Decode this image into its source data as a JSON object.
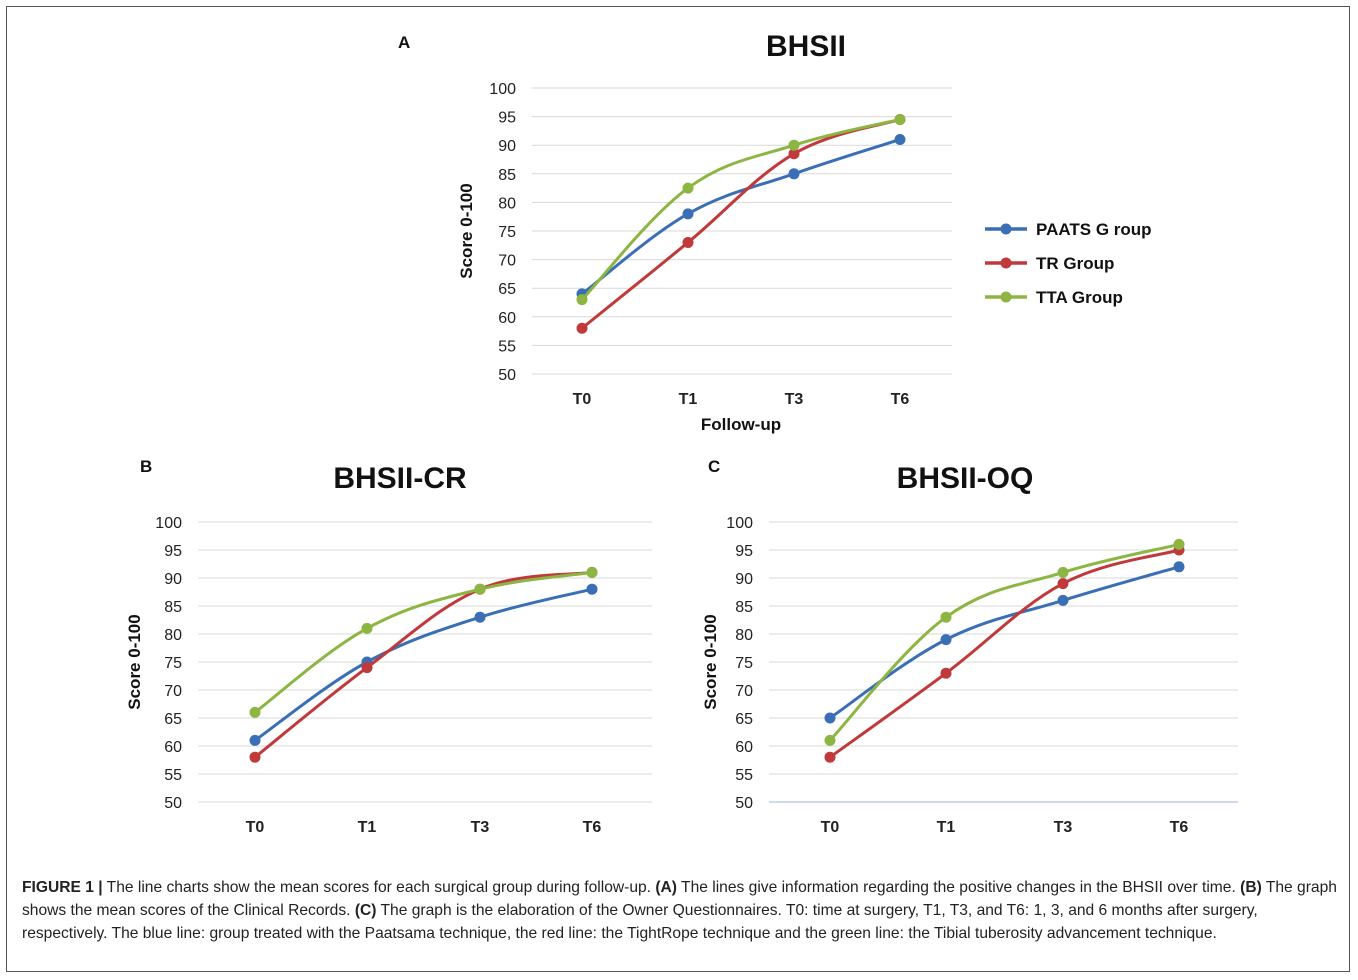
{
  "colors": {
    "paats": "#3a6fb5",
    "tr": "#c0393b",
    "tta": "#8db542",
    "grid": "#dcdcdc"
  },
  "legend": {
    "placement": "right",
    "items": [
      {
        "label": "PAATS G roup",
        "color_key": "paats"
      },
      {
        "label": "TR Group",
        "color_key": "tr"
      },
      {
        "label": "TTA Group",
        "color_key": "tta"
      }
    ]
  },
  "chart_data": [
    {
      "panel": "A",
      "type": "line",
      "title": "BHSII",
      "xlabel": "Follow-up",
      "ylabel": "Score 0-100",
      "categories": [
        "T0",
        "T1",
        "T3",
        "T6"
      ],
      "ylim": [
        50,
        100
      ],
      "yticks": [
        50,
        55,
        60,
        65,
        70,
        75,
        80,
        85,
        90,
        95,
        100
      ],
      "grid": true,
      "series": [
        {
          "name": "PAATS G roup",
          "color_key": "paats",
          "values": [
            64,
            78,
            85,
            91
          ]
        },
        {
          "name": "TR Group",
          "color_key": "tr",
          "values": [
            58,
            73,
            88.5,
            94.5
          ]
        },
        {
          "name": "TTA Group",
          "color_key": "tta",
          "values": [
            63,
            82.5,
            90,
            94.5
          ]
        }
      ]
    },
    {
      "panel": "B",
      "type": "line",
      "title": "BHSII-CR",
      "xlabel": "",
      "ylabel": "Score 0-100",
      "categories": [
        "T0",
        "T1",
        "T3",
        "T6"
      ],
      "ylim": [
        50,
        100
      ],
      "yticks": [
        50,
        55,
        60,
        65,
        70,
        75,
        80,
        85,
        90,
        95,
        100
      ],
      "grid": true,
      "series": [
        {
          "name": "PAATS G roup",
          "color_key": "paats",
          "values": [
            61,
            75,
            83,
            88
          ]
        },
        {
          "name": "TR Group",
          "color_key": "tr",
          "values": [
            58,
            74,
            88,
            91
          ]
        },
        {
          "name": "TTA Group",
          "color_key": "tta",
          "values": [
            66,
            81,
            88,
            91
          ]
        }
      ]
    },
    {
      "panel": "C",
      "type": "line",
      "title": "BHSII-OQ",
      "xlabel": "",
      "ylabel": "Score 0-100",
      "categories": [
        "T0",
        "T1",
        "T3",
        "T6"
      ],
      "ylim": [
        50,
        100
      ],
      "yticks": [
        50,
        55,
        60,
        65,
        70,
        75,
        80,
        85,
        90,
        95,
        100
      ],
      "grid": true,
      "series": [
        {
          "name": "PAATS G roup",
          "color_key": "paats",
          "values": [
            65,
            79,
            86,
            92
          ]
        },
        {
          "name": "TR Group",
          "color_key": "tr",
          "values": [
            58,
            73,
            89,
            95
          ]
        },
        {
          "name": "TTA Group",
          "color_key": "tta",
          "values": [
            61,
            83,
            91,
            96
          ]
        }
      ]
    }
  ],
  "caption": {
    "label": "FIGURE 1 |",
    "intro": " The line charts show the mean scores for each surgical group during follow-up. ",
    "a_tag": "(A)",
    "a_text": " The lines give information regarding the positive changes in the BHSII over time. ",
    "b_tag": "(B)",
    "b_text": " The graph shows the mean scores of the Clinical Records. ",
    "c_tag": "(C)",
    "c_text": " The graph is the elaboration of the Owner Questionnaires. T0: time at surgery, T1, T3, and T6: 1, 3, and 6 months after surgery, respectively. The blue line: group treated with the Paatsama technique, the red line: the TightRope technique and the green line: the Tibial tuberosity advancement technique."
  }
}
